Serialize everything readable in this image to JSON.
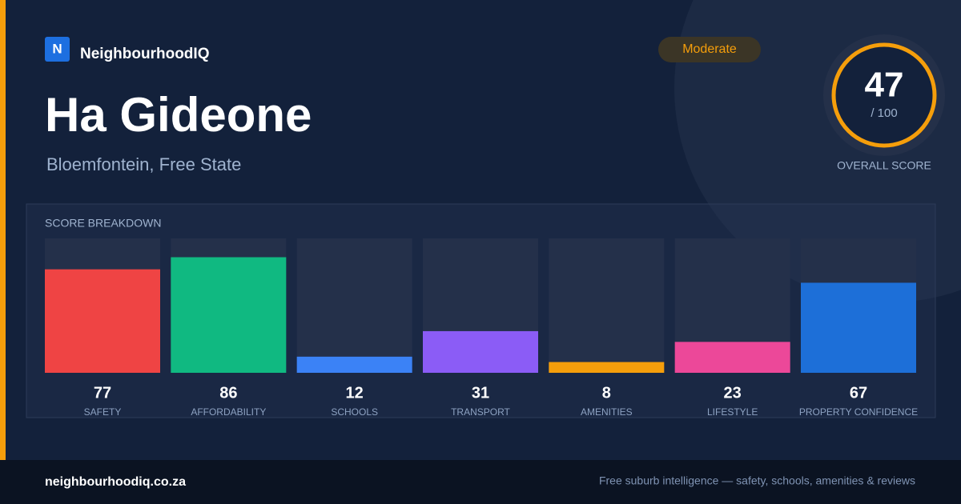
{
  "brand": {
    "logo": "N",
    "name": "NeighbourhoodIQ"
  },
  "badge": "Moderate",
  "header": {
    "title": "Ha Gideone",
    "subtitle": "Bloemfontein, Free State"
  },
  "score": {
    "value": 47,
    "out_of": "/ 100",
    "label": "OVERALL SCORE"
  },
  "chart_data": {
    "type": "bar",
    "title": "SCORE BREAKDOWN",
    "categories": [
      "SAFETY",
      "AFFORDABILITY",
      "SCHOOLS",
      "TRANSPORT",
      "AMENITIES",
      "LIFESTYLE",
      "PROPERTY CONFIDENCE"
    ],
    "values": [
      77,
      86,
      12,
      31,
      8,
      23,
      67
    ],
    "colors": [
      "#ef4444",
      "#10b981",
      "#3b82f6",
      "#8b5cf6",
      "#f59e0b",
      "#ec4899",
      "#1d6fd8"
    ],
    "ylim": [
      0,
      100
    ]
  },
  "footer": {
    "site": "neighbourhoodiq.co.za",
    "tagline": "Free suburb intelligence — safety, schools, amenities & reviews"
  }
}
